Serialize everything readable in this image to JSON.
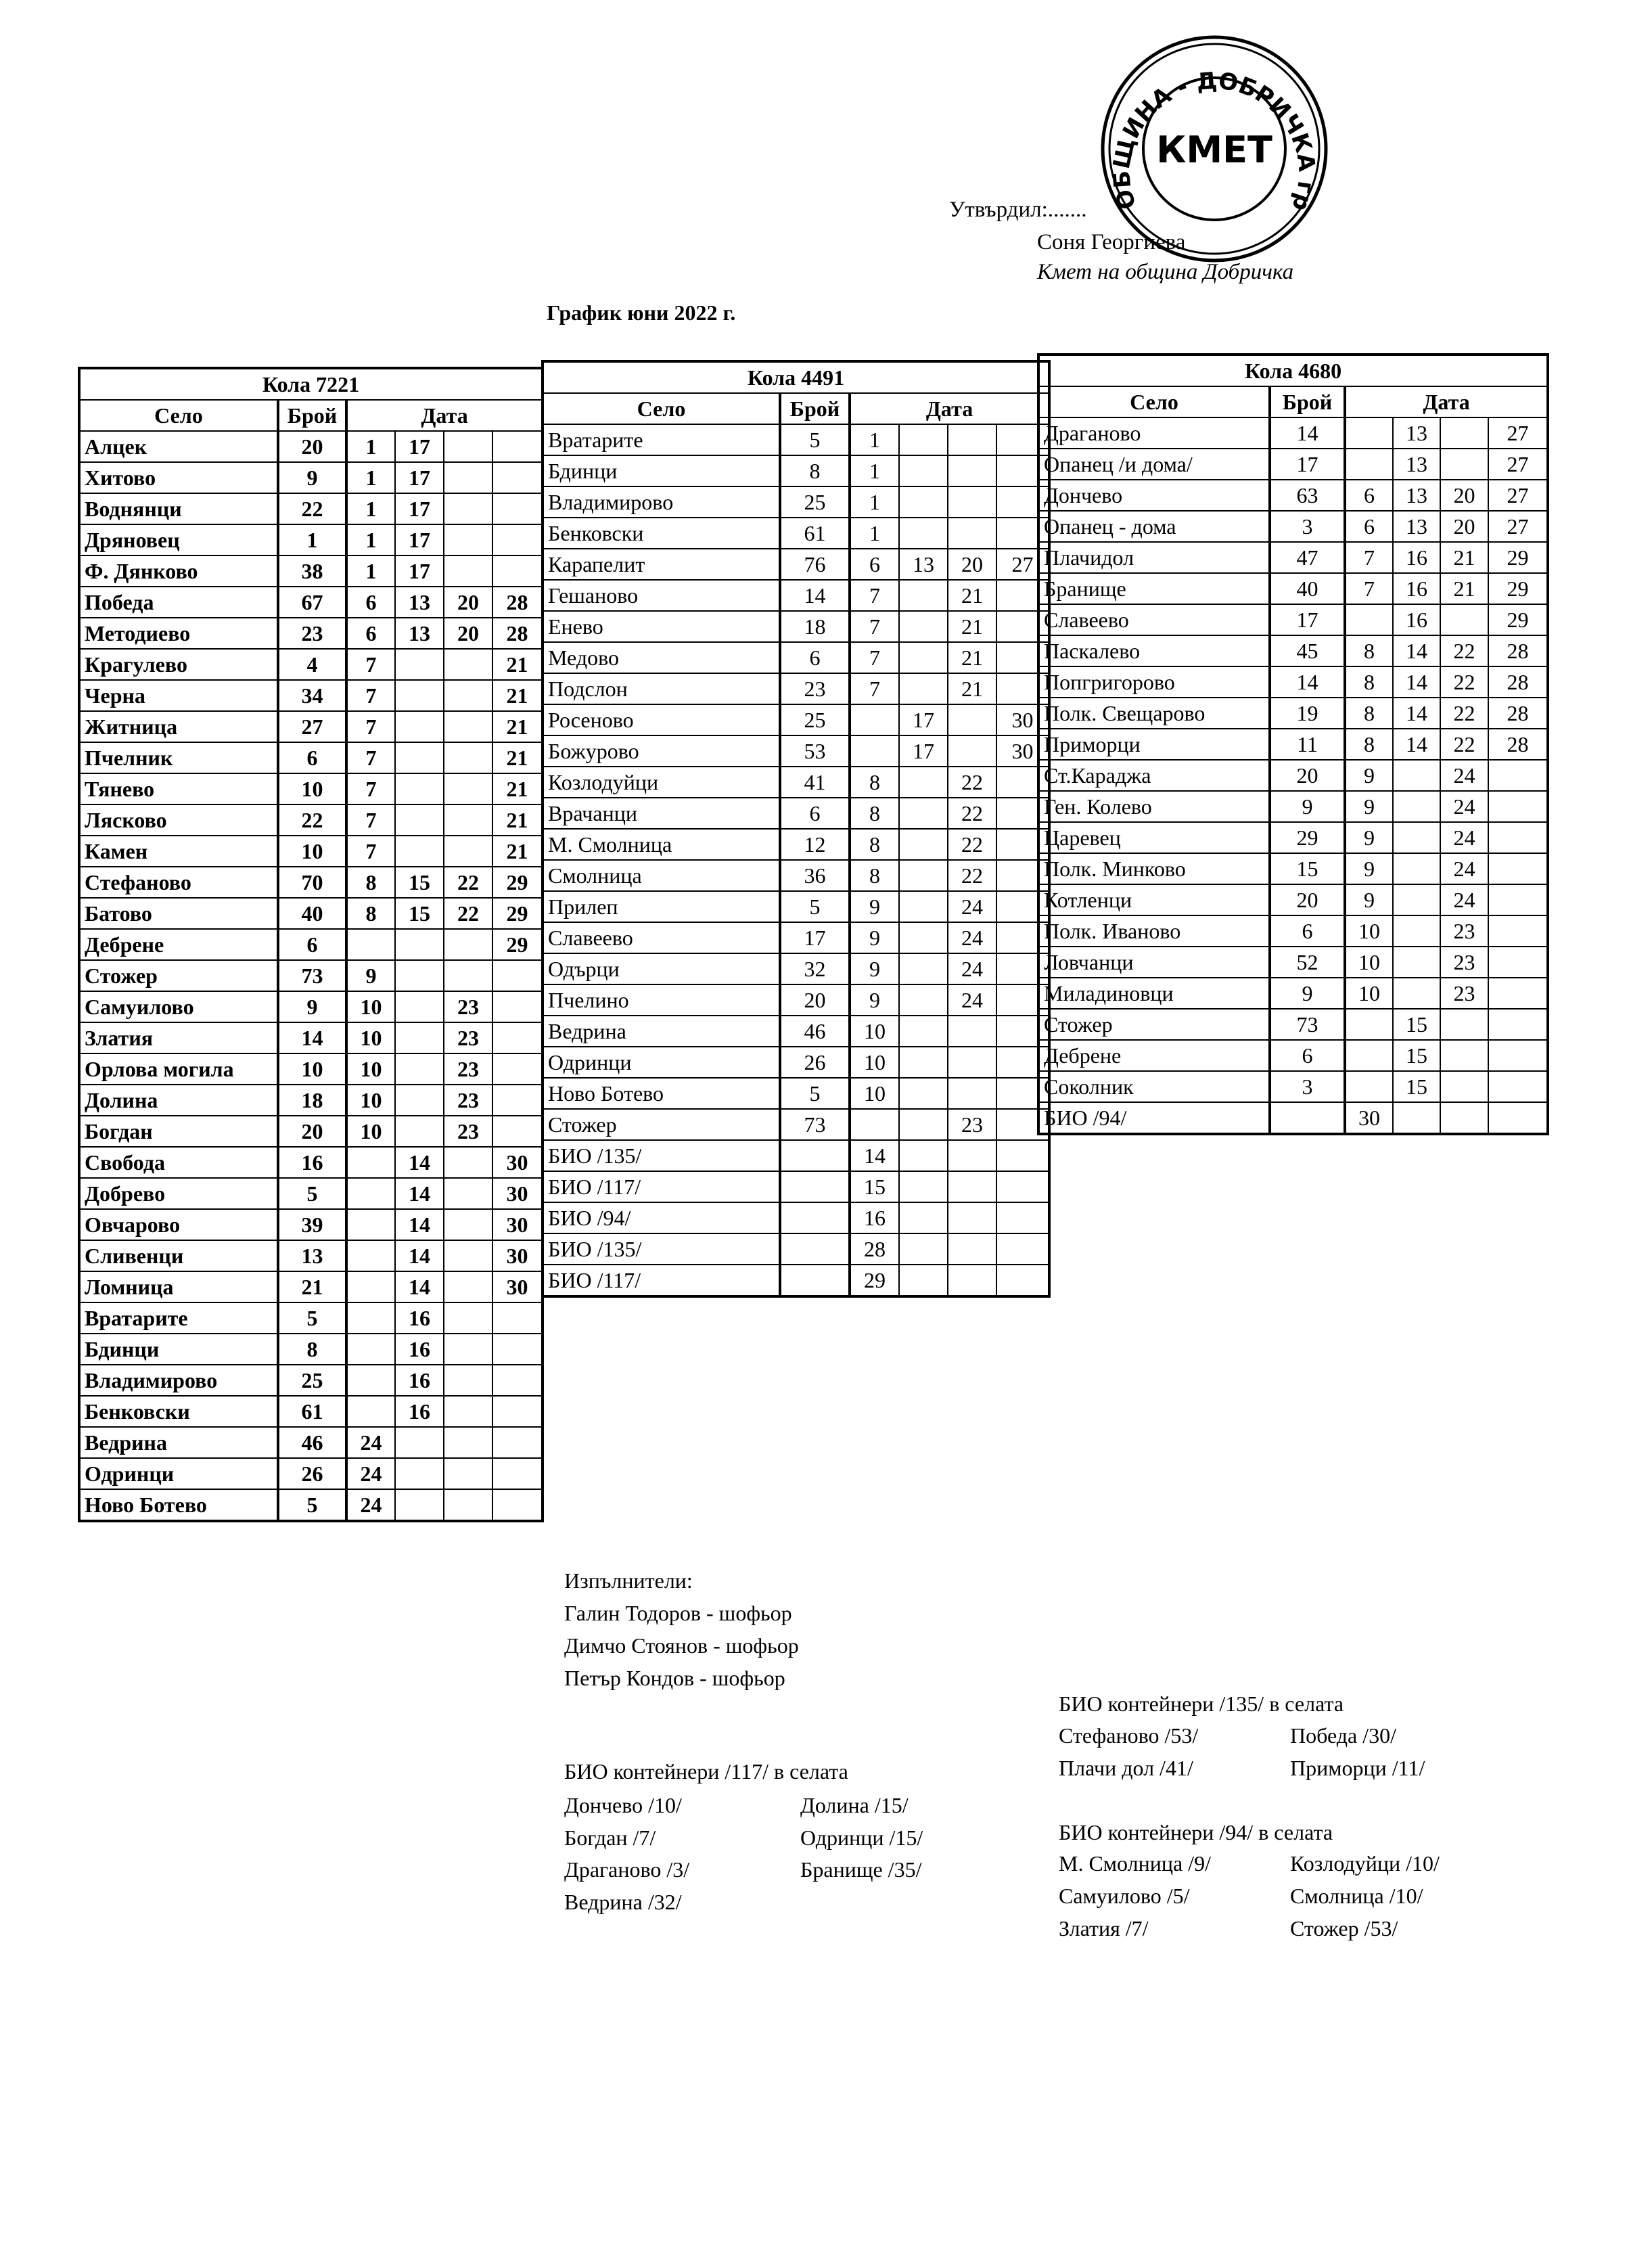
{
  "header": {
    "approved_by": "Утвърдил:.......",
    "signatory_name": "Соня Георгиева",
    "signatory_title": "Кмет  на община Добричка",
    "stamp_text": "ОБЩИНА - ДОБРИЧКА гр.Добрич КМЕТ"
  },
  "title": "График юни 2022 г.",
  "column_labels": {
    "village": "Село",
    "count": "Брой",
    "date": "Дата"
  },
  "tables": [
    {
      "vehicle": "Кола 7221",
      "rows": [
        [
          "Алцек",
          "20",
          "1",
          "17",
          "",
          ""
        ],
        [
          "Хитово",
          "9",
          "1",
          "17",
          "",
          ""
        ],
        [
          "Воднянци",
          "22",
          "1",
          "17",
          "",
          ""
        ],
        [
          "Дряновец",
          "1",
          "1",
          "17",
          "",
          ""
        ],
        [
          "Ф. Дянково",
          "38",
          "1",
          "17",
          "",
          ""
        ],
        [
          "Победа",
          "67",
          "6",
          "13",
          "20",
          "28"
        ],
        [
          "Методиево",
          "23",
          "6",
          "13",
          "20",
          "28"
        ],
        [
          "Крагулево",
          "4",
          "7",
          "",
          "",
          "21"
        ],
        [
          "Черна",
          "34",
          "7",
          "",
          "",
          "21"
        ],
        [
          "Житница",
          "27",
          "7",
          "",
          "",
          "21"
        ],
        [
          "Пчелник",
          "6",
          "7",
          "",
          "",
          "21"
        ],
        [
          "Тянево",
          "10",
          "7",
          "",
          "",
          "21"
        ],
        [
          "Лясково",
          "22",
          "7",
          "",
          "",
          "21"
        ],
        [
          "Камен",
          "10",
          "7",
          "",
          "",
          "21"
        ],
        [
          "Стефаново",
          "70",
          "8",
          "15",
          "22",
          "29"
        ],
        [
          "Батово",
          "40",
          "8",
          "15",
          "22",
          "29"
        ],
        [
          "Дебрене",
          "6",
          "",
          "",
          "",
          "29"
        ],
        [
          "Стожер",
          "73",
          "9",
          "",
          "",
          ""
        ],
        [
          "Самуилово",
          "9",
          "10",
          "",
          "23",
          ""
        ],
        [
          "Златия",
          "14",
          "10",
          "",
          "23",
          ""
        ],
        [
          "Орлова могила",
          "10",
          "10",
          "",
          "23",
          ""
        ],
        [
          "Долина",
          "18",
          "10",
          "",
          "23",
          ""
        ],
        [
          "Богдан",
          "20",
          "10",
          "",
          "23",
          ""
        ],
        [
          "Свобода",
          "16",
          "",
          "14",
          "",
          "30"
        ],
        [
          "Добрево",
          "5",
          "",
          "14",
          "",
          "30"
        ],
        [
          "Овчарово",
          "39",
          "",
          "14",
          "",
          "30"
        ],
        [
          "Сливенци",
          "13",
          "",
          "14",
          "",
          "30"
        ],
        [
          "Ломница",
          "21",
          "",
          "14",
          "",
          "30"
        ],
        [
          "Вратарите",
          "5",
          "",
          "16",
          "",
          ""
        ],
        [
          "Бдинци",
          "8",
          "",
          "16",
          "",
          ""
        ],
        [
          "Владимирово",
          "25",
          "",
          "16",
          "",
          ""
        ],
        [
          "Бенковски",
          "61",
          "",
          "16",
          "",
          ""
        ],
        [
          "Ведрина",
          "46",
          "24",
          "",
          "",
          ""
        ],
        [
          "Одринци",
          "26",
          "24",
          "",
          "",
          ""
        ],
        [
          "Ново Ботево",
          "5",
          "24",
          "",
          "",
          ""
        ]
      ]
    },
    {
      "vehicle": "Кола 4491",
      "rows": [
        [
          "Вратарите",
          "5",
          "1",
          "",
          "",
          ""
        ],
        [
          "Бдинци",
          "8",
          "1",
          "",
          "",
          ""
        ],
        [
          "Владимирово",
          "25",
          "1",
          "",
          "",
          ""
        ],
        [
          "Бенковски",
          "61",
          "1",
          "",
          "",
          ""
        ],
        [
          "Карапелит",
          "76",
          "6",
          "13",
          "20",
          "27"
        ],
        [
          "Гешаново",
          "14",
          "7",
          "",
          "21",
          ""
        ],
        [
          "Енево",
          "18",
          "7",
          "",
          "21",
          ""
        ],
        [
          "Медово",
          "6",
          "7",
          "",
          "21",
          ""
        ],
        [
          "Подслон",
          "23",
          "7",
          "",
          "21",
          ""
        ],
        [
          "Росеново",
          "25",
          "",
          "17",
          "",
          "30"
        ],
        [
          "Божурово",
          "53",
          "",
          "17",
          "",
          "30"
        ],
        [
          "Козлодуйци",
          "41",
          "8",
          "",
          "22",
          ""
        ],
        [
          "Врачанци",
          "6",
          "8",
          "",
          "22",
          ""
        ],
        [
          "М. Смолница",
          "12",
          "8",
          "",
          "22",
          ""
        ],
        [
          "Смолница",
          "36",
          "8",
          "",
          "22",
          ""
        ],
        [
          "Прилеп",
          "5",
          "9",
          "",
          "24",
          ""
        ],
        [
          "Славеево",
          "17",
          "9",
          "",
          "24",
          ""
        ],
        [
          "Одърци",
          "32",
          "9",
          "",
          "24",
          ""
        ],
        [
          "Пчелино",
          "20",
          "9",
          "",
          "24",
          ""
        ],
        [
          "Ведрина",
          "46",
          "10",
          "",
          "",
          ""
        ],
        [
          "Одринци",
          "26",
          "10",
          "",
          "",
          ""
        ],
        [
          "Ново Ботево",
          "5",
          "10",
          "",
          "",
          ""
        ],
        [
          "Стожер",
          "73",
          "",
          "",
          "23",
          ""
        ],
        [
          "БИО /135/",
          "",
          "14",
          "",
          "",
          ""
        ],
        [
          "БИО /117/",
          "",
          "15",
          "",
          "",
          ""
        ],
        [
          "БИО /94/",
          "",
          "16",
          "",
          "",
          ""
        ],
        [
          "БИО /135/",
          "",
          "28",
          "",
          "",
          ""
        ],
        [
          "БИО /117/",
          "",
          "29",
          "",
          "",
          ""
        ]
      ]
    },
    {
      "vehicle": "Кола 4680",
      "rows": [
        [
          "Драганово",
          "14",
          "",
          "13",
          "",
          "27"
        ],
        [
          "Опанец /и дома/",
          "17",
          "",
          "13",
          "",
          "27"
        ],
        [
          "Дончево",
          "63",
          "6",
          "13",
          "20",
          "27"
        ],
        [
          "Опанец - дома",
          "3",
          "6",
          "13",
          "20",
          "27"
        ],
        [
          "Плачидол",
          "47",
          "7",
          "16",
          "21",
          "29"
        ],
        [
          "Бранище",
          "40",
          "7",
          "16",
          "21",
          "29"
        ],
        [
          "Славеево",
          "17",
          "",
          "16",
          "",
          "29"
        ],
        [
          "Паскалево",
          "45",
          "8",
          "14",
          "22",
          "28"
        ],
        [
          "Попгригорово",
          "14",
          "8",
          "14",
          "22",
          "28"
        ],
        [
          "Полк. Свещарово",
          "19",
          "8",
          "14",
          "22",
          "28"
        ],
        [
          "Приморци",
          "11",
          "8",
          "14",
          "22",
          "28"
        ],
        [
          "Ст.Караджа",
          "20",
          "9",
          "",
          "24",
          ""
        ],
        [
          "Ген. Колево",
          "9",
          "9",
          "",
          "24",
          ""
        ],
        [
          "Царевец",
          "29",
          "9",
          "",
          "24",
          ""
        ],
        [
          "Полк. Минково",
          "15",
          "9",
          "",
          "24",
          ""
        ],
        [
          "Котленци",
          "20",
          "9",
          "",
          "24",
          ""
        ],
        [
          "Полк. Иваново",
          "6",
          "10",
          "",
          "23",
          ""
        ],
        [
          "Ловчанци",
          "52",
          "10",
          "",
          "23",
          ""
        ],
        [
          "Миладиновци",
          "9",
          "10",
          "",
          "23",
          ""
        ],
        [
          "Стожер",
          "73",
          "",
          "15",
          "",
          ""
        ],
        [
          "Дебрене",
          "6",
          "",
          "15",
          "",
          ""
        ],
        [
          "Соколник",
          "3",
          "",
          "15",
          "",
          ""
        ],
        [
          "БИО /94/",
          "",
          "30",
          "",
          "",
          ""
        ]
      ]
    }
  ],
  "executors": {
    "heading": "Изпълнители:",
    "people": [
      "Галин Тодоров - шофьор",
      "Димчо Стоянов - шофьор",
      "Петър Кондов - шофьор"
    ]
  },
  "bio_117": {
    "heading": "БИО контейнери /117/ в селата",
    "col1": [
      "Дончево /10/",
      "Богдан /7/",
      "Драганово /3/",
      "Ведрина /32/"
    ],
    "col2": [
      "Долина /15/",
      "Одринци /15/",
      "Бранище /35/"
    ]
  },
  "bio_135": {
    "heading": "БИО контейнери /135/ в селата",
    "col1": [
      "Стефаново /53/",
      "Плачи дол /41/"
    ],
    "col2": [
      "Победа /30/",
      "Приморци /11/"
    ]
  },
  "bio_94": {
    "heading": "БИО контейнери /94/ в селата",
    "col1": [
      "М. Смолница /9/",
      "Самуилово /5/",
      "Златия /7/"
    ],
    "col2": [
      "Козлодуйци /10/",
      "Смолница /10/",
      "Стожер /53/"
    ]
  }
}
